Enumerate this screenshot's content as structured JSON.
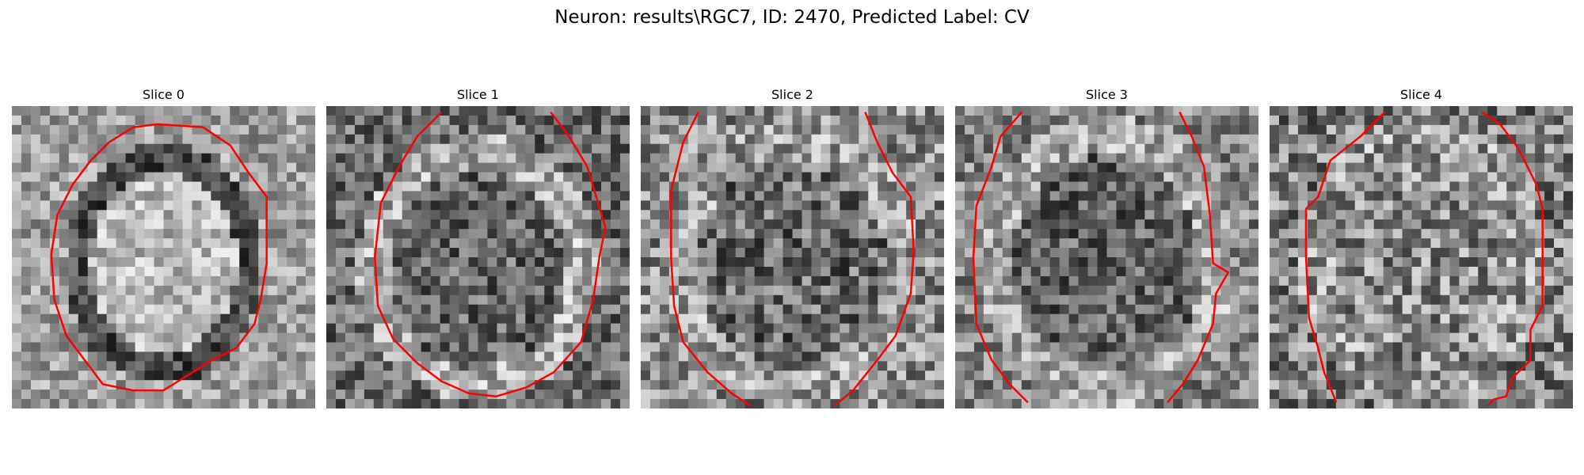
{
  "figure": {
    "title": "Neuron: results\\RGC7, ID: 2470, Predicted Label: CV"
  },
  "panels": [
    {
      "title": "Slice 0"
    },
    {
      "title": "Slice 1"
    },
    {
      "title": "Slice 2"
    },
    {
      "title": "Slice 3"
    },
    {
      "title": "Slice 4"
    }
  ],
  "colors": {
    "contour": "#ff0000",
    "colormap": "gray"
  }
}
